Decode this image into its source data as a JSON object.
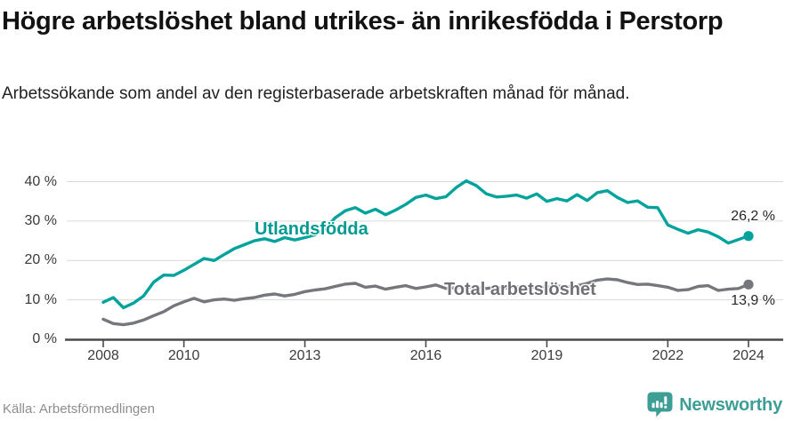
{
  "header": {
    "title": "Högre arbetslöshet bland utrikes- än inrikesfödda i Perstorp",
    "subtitle": "Arbetssökande som andel av den registerbaserade arbetskraften månad för månad."
  },
  "chart_data": {
    "type": "line",
    "x": [
      2008.0,
      2008.25,
      2008.5,
      2008.75,
      2009.0,
      2009.25,
      2009.5,
      2009.75,
      2010.0,
      2010.25,
      2010.5,
      2010.75,
      2011.0,
      2011.25,
      2011.5,
      2011.75,
      2012.0,
      2012.25,
      2012.5,
      2012.75,
      2013.0,
      2013.25,
      2013.5,
      2013.75,
      2014.0,
      2014.25,
      2014.5,
      2014.75,
      2015.0,
      2015.25,
      2015.5,
      2015.75,
      2016.0,
      2016.25,
      2016.5,
      2016.75,
      2017.0,
      2017.25,
      2017.5,
      2017.75,
      2018.0,
      2018.25,
      2018.5,
      2018.75,
      2019.0,
      2019.25,
      2019.5,
      2019.75,
      2020.0,
      2020.25,
      2020.5,
      2020.75,
      2021.0,
      2021.25,
      2021.5,
      2021.75,
      2022.0,
      2022.25,
      2022.5,
      2022.75,
      2023.0,
      2023.25,
      2023.5,
      2023.75,
      2024.0
    ],
    "series": [
      {
        "name": "Utlandsfödda",
        "end_label": "26,2 %",
        "last_value": 26.2,
        "values": [
          9.4,
          10.6,
          8.0,
          9.2,
          11.0,
          14.5,
          16.3,
          16.2,
          17.5,
          19.0,
          20.5,
          20.0,
          21.5,
          23.0,
          24.0,
          25.0,
          25.5,
          24.8,
          25.8,
          25.2,
          25.8,
          26.5,
          28.0,
          30.8,
          32.6,
          33.4,
          32.0,
          33.0,
          31.6,
          32.8,
          34.2,
          36.0,
          36.6,
          35.7,
          36.2,
          38.5,
          40.2,
          39.0,
          36.9,
          36.1,
          36.3,
          36.6,
          35.8,
          36.9,
          35.0,
          35.7,
          35.1,
          36.7,
          35.2,
          37.2,
          37.7,
          36.0,
          34.7,
          35.1,
          33.5,
          33.4,
          29.0,
          27.9,
          26.9,
          27.8,
          27.2,
          26.0,
          24.4,
          25.3,
          26.2
        ]
      },
      {
        "name": "Total arbetslöshet",
        "end_label": "13,9 %",
        "last_value": 13.9,
        "values": [
          5.1,
          4.0,
          3.7,
          4.1,
          4.9,
          6.0,
          7.0,
          8.5,
          9.5,
          10.4,
          9.5,
          10.0,
          10.2,
          9.9,
          10.3,
          10.6,
          11.2,
          11.5,
          11.0,
          11.4,
          12.1,
          12.5,
          12.8,
          13.4,
          14.0,
          14.2,
          13.2,
          13.5,
          12.7,
          13.2,
          13.6,
          12.9,
          13.3,
          13.8,
          12.9,
          13.1,
          13.3,
          13.1,
          12.9,
          13.2,
          13.0,
          13.3,
          13.1,
          13.4,
          13.2,
          13.5,
          13.3,
          13.6,
          14.2,
          15.0,
          15.3,
          15.1,
          14.4,
          13.9,
          14.0,
          13.6,
          13.2,
          12.4,
          12.6,
          13.4,
          13.6,
          12.4,
          12.7,
          12.9,
          13.9
        ]
      }
    ],
    "x_ticks": [
      2008,
      2010,
      2013,
      2016,
      2019,
      2022,
      2024
    ],
    "y_ticks": [
      0,
      10,
      20,
      30,
      40
    ],
    "y_tick_suffix": " %",
    "ylim": [
      0,
      42
    ],
    "xlim": [
      2007.1,
      2024.9
    ],
    "grid": "horizontal",
    "legend_position": "inline-labels"
  },
  "footer": {
    "source": "Källa: Arbetsförmedlingen",
    "brand": "Newsworthy"
  },
  "colors": {
    "series1": "#00a39b",
    "series1_label": "#009a92",
    "series2": "#75777c",
    "series2_label": "#6e7075",
    "brand": "#3d9e96",
    "grid": "#d9d9d9",
    "axis": "#4a4a4c"
  }
}
